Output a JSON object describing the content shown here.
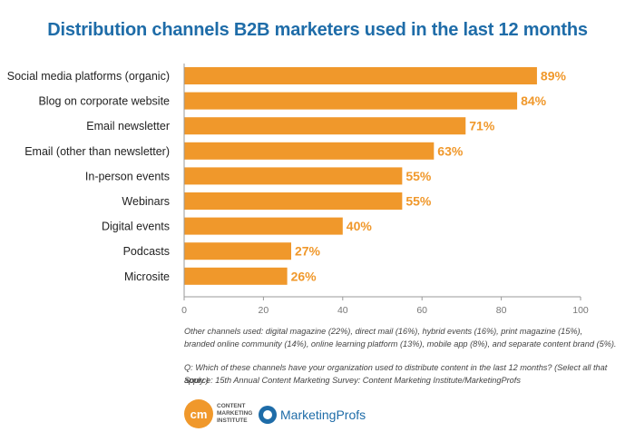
{
  "chart_data": {
    "type": "bar",
    "orientation": "horizontal",
    "title": "Distribution channels B2B marketers used in the last 12 months",
    "categories": [
      "Social media platforms (organic)",
      "Blog on corporate website",
      "Email newsletter",
      "Email (other than newsletter)",
      "In-person events",
      "Webinars",
      "Digital events",
      "Podcasts",
      "Microsite"
    ],
    "values": [
      89,
      84,
      71,
      63,
      55,
      55,
      40,
      27,
      26
    ],
    "value_suffix": "%",
    "xlim": [
      0,
      100
    ],
    "xticks": [
      0,
      20,
      40,
      60,
      80,
      100
    ],
    "xlabel": "",
    "ylabel": "",
    "grid": false,
    "bar_color": "#f0982b"
  },
  "notes": {
    "other_channels_1": "Other channels used: digital magazine (22%), direct mail (16%), hybrid events (16%), print magazine (15%),",
    "other_channels_2": "branded online community (14%), online learning platform (13%), mobile app (8%), and separate content brand (5%).",
    "question": "Q: Which of these channels have your organization used to distribute content in the last 12 months? (Select all that apply.)",
    "source": "Source: 15th Annual Content Marketing Survey: Content Marketing Institute/MarketingProfs"
  },
  "logos": {
    "cmi_mark": "cm",
    "cmi_text_1": "CONTENT",
    "cmi_text_2": "MARKETING",
    "cmi_text_3": "INSTITUTE",
    "marketingprofs": "MarketingProfs"
  },
  "colors": {
    "title": "#1e6ca8",
    "bar": "#f0982b",
    "value_label": "#f0982b"
  }
}
